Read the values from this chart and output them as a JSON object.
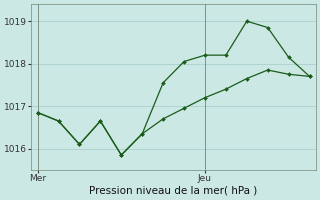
{
  "title": "",
  "xlabel": "Pression niveau de la mer( hPa )",
  "bg_color": "#cce8e4",
  "grid_color": "#aad0cc",
  "line_color": "#1a5c1a",
  "ylim": [
    1015.5,
    1019.4
  ],
  "yticks": [
    1016,
    1017,
    1018,
    1019
  ],
  "line1_x": [
    0,
    1,
    2,
    3,
    4,
    5,
    6,
    7,
    8,
    9,
    10,
    11,
    12,
    13
  ],
  "line1_y": [
    1016.85,
    1016.65,
    1016.1,
    1016.65,
    1015.85,
    1016.35,
    1017.55,
    1018.05,
    1018.2,
    1018.2,
    1019.0,
    1018.85,
    1018.15,
    1017.7
  ],
  "line2_x": [
    0,
    1,
    2,
    3,
    4,
    5,
    6,
    7,
    8,
    9,
    10,
    11,
    12,
    13
  ],
  "line2_y": [
    1016.85,
    1016.65,
    1016.1,
    1016.65,
    1015.85,
    1016.35,
    1016.7,
    1016.95,
    1017.2,
    1017.4,
    1017.65,
    1017.85,
    1017.75,
    1017.7
  ],
  "x_labels": [
    [
      0,
      "Mer"
    ],
    [
      8,
      "Jeu"
    ]
  ],
  "xlim": [
    -0.3,
    13.3
  ],
  "vline_color": "#778877",
  "tick_fontsize": 6.5,
  "xlabel_fontsize": 7.5
}
